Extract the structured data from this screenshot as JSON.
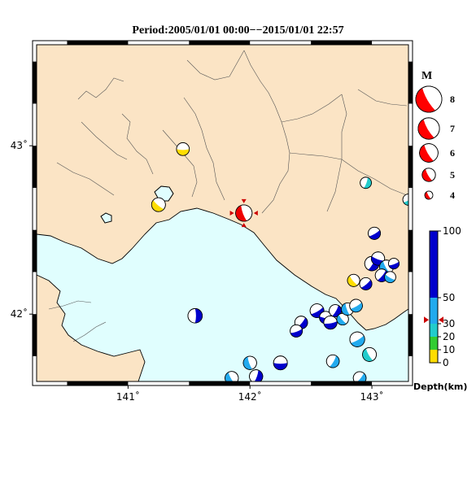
{
  "title": "Period:2005/01/01 00:00−−2015/01/01 22:57",
  "map": {
    "lon_range": [
      140.25,
      143.3
    ],
    "lat_range": [
      41.6,
      43.6
    ],
    "lon_ticks": [
      {
        "value": 141,
        "label": "141˚"
      },
      {
        "value": 142,
        "label": "142˚"
      },
      {
        "value": 143,
        "label": "143˚"
      }
    ],
    "lat_ticks": [
      {
        "value": 43,
        "label": "43˚"
      },
      {
        "value": 42,
        "label": "42˚"
      }
    ],
    "colors": {
      "sea": "#e0fefe",
      "land": "#fbe4c5",
      "coast": "#000000",
      "boundary": "#555555",
      "lake": "#e0fefe"
    }
  },
  "magnitude_legend": {
    "title": "M",
    "items": [
      {
        "label": "8",
        "mag": 8
      },
      {
        "label": "7",
        "mag": 7
      },
      {
        "label": "6",
        "mag": 6
      },
      {
        "label": "5",
        "mag": 5
      },
      {
        "label": "4",
        "mag": 4
      }
    ],
    "color": "#ff0000"
  },
  "depth_legend": {
    "title": "Depth(km)",
    "labels": [
      {
        "value": 100,
        "label": "100"
      },
      {
        "value": 50,
        "label": "50"
      },
      {
        "value": 30,
        "label": "30"
      },
      {
        "value": 20,
        "label": "20"
      },
      {
        "value": 10,
        "label": "10"
      },
      {
        "value": 0,
        "label": "0"
      }
    ],
    "bands": [
      {
        "from": 0,
        "to": 10,
        "color": "#ffdd00"
      },
      {
        "from": 10,
        "to": 20,
        "color": "#33cc33"
      },
      {
        "from": 20,
        "to": 30,
        "color": "#22cccc"
      },
      {
        "from": 30,
        "to": 50,
        "color": "#22aaee"
      },
      {
        "from": 50,
        "to": 100,
        "color": "#0000cc"
      }
    ],
    "marker_value": 33,
    "marker_color": "#cc0000"
  },
  "chart_data": {
    "type": "scatter",
    "title": "Period:2005/01/01 00:00−−2015/01/01 22:57",
    "xlabel": "",
    "ylabel": "",
    "xlim": [
      140.25,
      143.3
    ],
    "ylim": [
      41.6,
      43.6
    ],
    "events": [
      {
        "lon": 141.95,
        "lat": 42.6,
        "mag": 5.6,
        "depth": 33,
        "color": "#ee0000",
        "rot": 160,
        "highlight": true
      },
      {
        "lon": 141.45,
        "lat": 42.98,
        "mag": 4.9,
        "depth": 5,
        "color": "#ffdd00",
        "rot": 90
      },
      {
        "lon": 141.25,
        "lat": 42.65,
        "mag": 5.1,
        "depth": 5,
        "color": "#ffdd00",
        "rot": 130
      },
      {
        "lon": 142.95,
        "lat": 42.78,
        "mag": 4.6,
        "depth": 25,
        "color": "#22cccc",
        "rot": 20
      },
      {
        "lon": 143.3,
        "lat": 42.68,
        "mag": 4.6,
        "depth": 25,
        "color": "#22cccc",
        "rot": 60
      },
      {
        "lon": 142.85,
        "lat": 42.2,
        "mag": 4.8,
        "depth": 5,
        "color": "#ffdd00",
        "rot": 140
      },
      {
        "lon": 143.02,
        "lat": 42.48,
        "mag": 4.8,
        "depth": 80,
        "color": "#0000cc",
        "rot": 60
      },
      {
        "lon": 143.0,
        "lat": 42.3,
        "mag": 5.2,
        "depth": 80,
        "color": "#0000cc",
        "rot": 30
      },
      {
        "lon": 143.05,
        "lat": 42.33,
        "mag": 5.0,
        "depth": 80,
        "color": "#0000cc",
        "rot": 110
      },
      {
        "lon": 143.12,
        "lat": 42.28,
        "mag": 5.1,
        "depth": 45,
        "color": "#22aaee",
        "rot": 150
      },
      {
        "lon": 143.08,
        "lat": 42.23,
        "mag": 4.9,
        "depth": 80,
        "color": "#0000cc",
        "rot": 40
      },
      {
        "lon": 143.18,
        "lat": 42.3,
        "mag": 4.5,
        "depth": 80,
        "color": "#0000cc",
        "rot": 70
      },
      {
        "lon": 143.15,
        "lat": 42.22,
        "mag": 4.6,
        "depth": 45,
        "color": "#22aaee",
        "rot": 120
      },
      {
        "lon": 142.95,
        "lat": 42.18,
        "mag": 4.8,
        "depth": 80,
        "color": "#0000cc",
        "rot": 50
      },
      {
        "lon": 141.55,
        "lat": 41.99,
        "mag": 5.2,
        "depth": 80,
        "color": "#0000cc",
        "rot": 0
      },
      {
        "lon": 142.55,
        "lat": 42.02,
        "mag": 5.1,
        "depth": 80,
        "color": "#0000cc",
        "rot": 60
      },
      {
        "lon": 142.62,
        "lat": 41.98,
        "mag": 4.8,
        "depth": 80,
        "color": "#0000cc",
        "rot": 100
      },
      {
        "lon": 142.7,
        "lat": 42.02,
        "mag": 4.8,
        "depth": 80,
        "color": "#0000cc",
        "rot": 30
      },
      {
        "lon": 142.76,
        "lat": 41.97,
        "mag": 4.7,
        "depth": 45,
        "color": "#22aaee",
        "rot": 140
      },
      {
        "lon": 142.8,
        "lat": 42.03,
        "mag": 4.8,
        "depth": 45,
        "color": "#22aaee",
        "rot": 160
      },
      {
        "lon": 142.87,
        "lat": 42.05,
        "mag": 4.9,
        "depth": 45,
        "color": "#22aaee",
        "rot": 60
      },
      {
        "lon": 142.66,
        "lat": 41.95,
        "mag": 5.0,
        "depth": 80,
        "color": "#0000cc",
        "rot": 80
      },
      {
        "lon": 142.42,
        "lat": 41.95,
        "mag": 4.9,
        "depth": 80,
        "color": "#0000cc",
        "rot": 40
      },
      {
        "lon": 142.38,
        "lat": 41.9,
        "mag": 4.8,
        "depth": 80,
        "color": "#0000cc",
        "rot": 70
      },
      {
        "lon": 142.88,
        "lat": 41.85,
        "mag": 5.3,
        "depth": 45,
        "color": "#22aaee",
        "rot": 60
      },
      {
        "lon": 142.98,
        "lat": 41.76,
        "mag": 5.1,
        "depth": 25,
        "color": "#22cccc",
        "rot": 150
      },
      {
        "lon": 142.0,
        "lat": 41.71,
        "mag": 5.0,
        "depth": 45,
        "color": "#22aaee",
        "rot": 160
      },
      {
        "lon": 142.25,
        "lat": 41.71,
        "mag": 5.1,
        "depth": 80,
        "color": "#0000cc",
        "rot": 90
      },
      {
        "lon": 142.68,
        "lat": 41.72,
        "mag": 4.9,
        "depth": 45,
        "color": "#22aaee",
        "rot": 30
      },
      {
        "lon": 142.05,
        "lat": 41.63,
        "mag": 5.0,
        "depth": 80,
        "color": "#0000cc",
        "rot": 20
      },
      {
        "lon": 141.85,
        "lat": 41.62,
        "mag": 5.0,
        "depth": 45,
        "color": "#22aaee",
        "rot": 150
      },
      {
        "lon": 142.9,
        "lat": 41.62,
        "mag": 4.9,
        "depth": 45,
        "color": "#22aaee",
        "rot": 40
      }
    ]
  }
}
